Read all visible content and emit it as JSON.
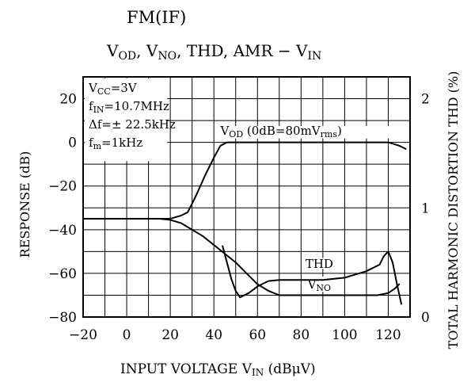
{
  "chart_data": {
    "type": "line",
    "title_line1": "FM(IF)",
    "title_line2": [
      {
        "t": "V"
      },
      {
        "t": "OD",
        "sub": true
      },
      {
        "t": ", V"
      },
      {
        "t": "NO",
        "sub": true
      },
      {
        "t": ", THD, AMR  −  V"
      },
      {
        "t": "IN",
        "sub": true
      }
    ],
    "xlabel": [
      {
        "t": "INPUT VOLTAGE  V"
      },
      {
        "t": "IN",
        "sub": true
      },
      {
        "t": "  (dBμV)"
      }
    ],
    "ylabel_left": "RESPONSE (dB)",
    "ylabel_right": "TOTAL HARMONIC DISTORTION THD (%)",
    "xlim": [
      -20,
      130
    ],
    "ylim_left": [
      -80,
      30
    ],
    "ylim_right": [
      0,
      2.2
    ],
    "x_ticks": [
      "−20",
      "0",
      "20",
      "40",
      "60",
      "80",
      "100",
      "120"
    ],
    "x_tick_values": [
      -20,
      0,
      20,
      40,
      60,
      80,
      100,
      120
    ],
    "y_ticks_left": [
      "20",
      "0",
      "−20",
      "−40",
      "−60",
      "−80"
    ],
    "y_tick_values_left": [
      20,
      0,
      -20,
      -40,
      -60,
      -80
    ],
    "y_ticks_right": [
      "2",
      "1",
      "0"
    ],
    "y_tick_values_right": [
      2,
      1,
      0
    ],
    "grid": true,
    "conditions": [
      [
        {
          "t": "V"
        },
        {
          "t": "CC",
          "sub": true
        },
        {
          "t": "=3V"
        }
      ],
      [
        {
          "t": "f"
        },
        {
          "t": "IN",
          "sub": true
        },
        {
          "t": "=10.7MHz"
        }
      ],
      [
        {
          "t": "Δf=± 22.5kHz"
        }
      ],
      [
        {
          "t": "f"
        },
        {
          "t": "m",
          "sub": true
        },
        {
          "t": "=1kHz"
        }
      ]
    ],
    "series": [
      {
        "name": "VOD",
        "label": [
          {
            "t": "V"
          },
          {
            "t": "OD",
            "sub": true
          },
          {
            "t": " (0dB=80mV"
          },
          {
            "t": "rms",
            "sub": true
          },
          {
            "t": ")"
          }
        ],
        "axis": "left",
        "x": [
          -20,
          0,
          15,
          20,
          25,
          28,
          32,
          36,
          40,
          43,
          46,
          50,
          60,
          80,
          100,
          120,
          125,
          128
        ],
        "y": [
          -35,
          -35,
          -35,
          -35,
          -33.5,
          -32,
          -24,
          -15,
          -7,
          -1.5,
          0,
          0,
          0,
          0,
          0,
          0,
          -1.5,
          -3
        ]
      },
      {
        "name": "VNO",
        "label": [
          {
            "t": "V"
          },
          {
            "t": "NO",
            "sub": true
          }
        ],
        "axis": "left",
        "x": [
          -20,
          0,
          15,
          20,
          25,
          30,
          35,
          40,
          45,
          50,
          55,
          60,
          65,
          70,
          80,
          100,
          115,
          120,
          123,
          125
        ],
        "y": [
          -35,
          -35,
          -35,
          -35.5,
          -37,
          -40,
          -43,
          -47,
          -51,
          -55,
          -60,
          -65,
          -68,
          -70,
          -70,
          -70,
          -70,
          -69,
          -67,
          -65
        ]
      },
      {
        "name": "THD",
        "label": [
          {
            "t": "THD"
          }
        ],
        "axis": "right",
        "x": [
          44,
          46,
          48,
          50,
          52,
          56,
          60,
          65,
          70,
          90,
          100,
          110,
          116,
          118,
          120,
          122,
          124,
          126
        ],
        "y": [
          0.65,
          0.5,
          0.35,
          0.24,
          0.18,
          0.22,
          0.28,
          0.33,
          0.34,
          0.34,
          0.36,
          0.42,
          0.48,
          0.56,
          0.6,
          0.5,
          0.3,
          0.12
        ]
      }
    ]
  }
}
